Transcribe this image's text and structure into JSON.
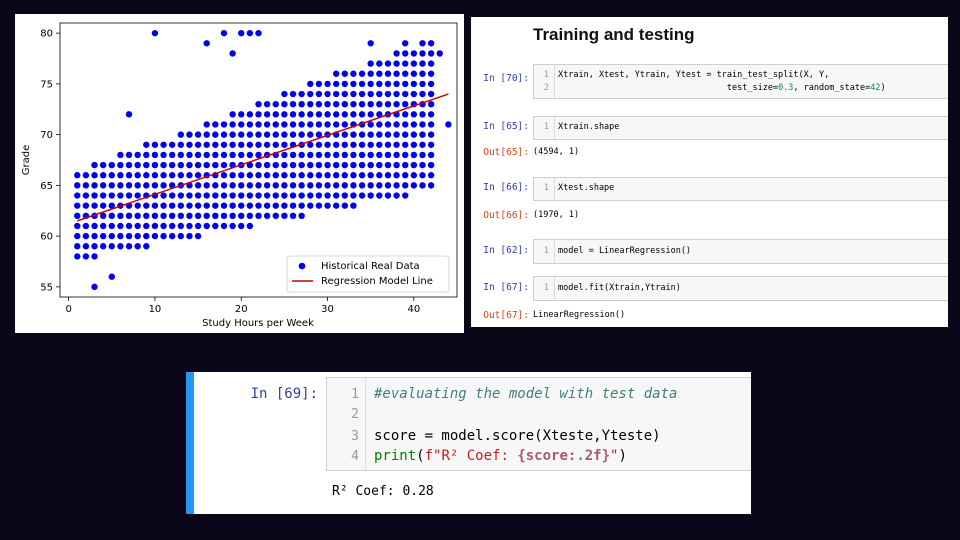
{
  "chart_data": {
    "type": "scatter",
    "xlabel": "Study Hours per Week",
    "ylabel": "Grade",
    "xlim": [
      -1,
      45
    ],
    "ylim": [
      54,
      81
    ],
    "xticks": [
      0,
      10,
      20,
      30,
      40
    ],
    "yticks": [
      55,
      60,
      65,
      70,
      75,
      80
    ],
    "legend_position": "bottom-right",
    "legend": {
      "scatter": "Historical Real Data",
      "line": "Regression Model Line"
    },
    "line": {
      "x": [
        1,
        44
      ],
      "y": [
        61.5,
        74
      ]
    },
    "colors": {
      "points": "#0000ee",
      "line": "#cc0000"
    },
    "scatter_band": {
      "x_start": 1,
      "x_end": 42,
      "y_low_start": 58,
      "y_low_end": 65,
      "y_high_start": 66,
      "y_high_end": 79
    },
    "outliers": [
      {
        "x": 10,
        "y": 80
      },
      {
        "x": 18,
        "y": 80
      },
      {
        "x": 20,
        "y": 80
      },
      {
        "x": 21,
        "y": 80
      },
      {
        "x": 22,
        "y": 80
      },
      {
        "x": 16,
        "y": 79
      },
      {
        "x": 19,
        "y": 78
      },
      {
        "x": 35,
        "y": 79
      },
      {
        "x": 39,
        "y": 79
      },
      {
        "x": 43,
        "y": 78
      },
      {
        "x": 44,
        "y": 71
      },
      {
        "x": 3,
        "y": 55
      },
      {
        "x": 5,
        "y": 56
      },
      {
        "x": 2,
        "y": 58
      },
      {
        "x": 7,
        "y": 72
      },
      {
        "x": 1,
        "y": 61
      },
      {
        "x": 1,
        "y": 60
      }
    ]
  },
  "notebook": {
    "title": "Training and testing",
    "cells": [
      {
        "prompt": "In [70]:",
        "lines": [
          "Xtrain, Xtest, Ytrain, Ytest = train_test_split(X, Y,",
          "                                                 test_size=0.3, random_state=42)"
        ],
        "out_prompt": "",
        "output": ""
      },
      {
        "prompt": "In [65]:",
        "lines": [
          "Xtrain.shape"
        ],
        "out_prompt": "Out[65]:",
        "output": "(4594, 1)"
      },
      {
        "prompt": "In [66]:",
        "lines": [
          "Xtest.shape"
        ],
        "out_prompt": "Out[66]:",
        "output": "(1970, 1)"
      },
      {
        "prompt": "In [62]:",
        "lines": [
          "model = LinearRegression()"
        ],
        "out_prompt": "",
        "output": ""
      },
      {
        "prompt": "In [67]:",
        "lines": [
          "model.fit(Xtrain,Ytrain)"
        ],
        "out_prompt": "Out[67]:",
        "output": "LinearRegression()"
      }
    ]
  },
  "eval": {
    "prompt": "In [69]:",
    "line1": "#evaluating the model with test data",
    "line3": "score = model.score(Xteste,Yteste)",
    "line4_fn": "print",
    "line4_a": "(",
    "line4_str1": "f\"R² Coef: ",
    "line4_sub": "{score:.2f}",
    "line4_str2": "\"",
    "line4_b": ")",
    "output": "R² Coef: 0.28"
  }
}
